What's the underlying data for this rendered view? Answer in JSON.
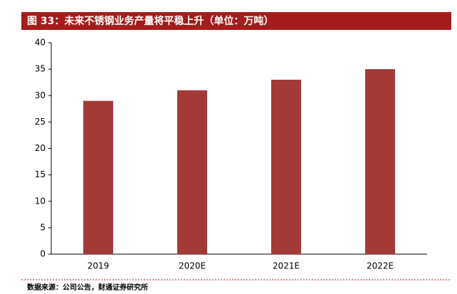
{
  "chart_data": {
    "type": "bar",
    "title": "图 33：未来不锈钢业务产量将平稳上升（单位：万吨）",
    "source": "数据来源：公司公告，财通证券研究所",
    "categories": [
      "2019",
      "2020E",
      "2021E",
      "2022E"
    ],
    "values": [
      29,
      31,
      33,
      35
    ],
    "color": "#a33a38",
    "ylim": [
      0,
      40
    ],
    "yticks": [
      0,
      5,
      10,
      15,
      20,
      25,
      30,
      35,
      40
    ],
    "grid": false
  }
}
